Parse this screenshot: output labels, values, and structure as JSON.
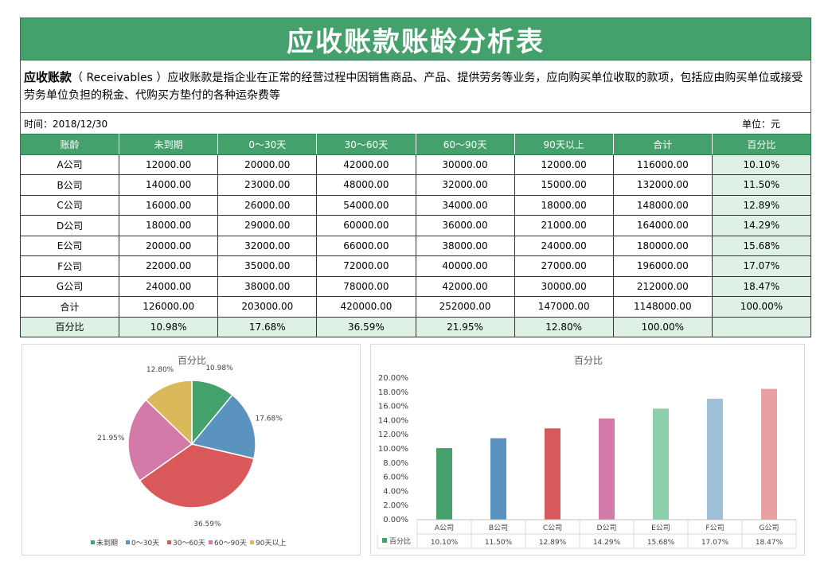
{
  "title": "应收账款账龄分析表",
  "description": {
    "term": "应收账款",
    "text": "（ Receivables ）应收账款是指企业在正常的经营过程中因销售商品、产品、提供劳务等业务，应向购买单位收取的款项，包括应由购买单位或接受劳务单位负担的税金、代购买方垫付的各种运杂费等"
  },
  "info": {
    "date": "时间：2018/12/30",
    "unit": "单位：元"
  },
  "table": {
    "headers": [
      "账龄",
      "未到期",
      "0～30天",
      "30～60天",
      "60～90天",
      "90天以上",
      "合计",
      "百分比"
    ],
    "rows": [
      [
        "A公司",
        "12000.00",
        "20000.00",
        "42000.00",
        "30000.00",
        "12000.00",
        "116000.00",
        "10.10%"
      ],
      [
        "B公司",
        "14000.00",
        "23000.00",
        "48000.00",
        "32000.00",
        "15000.00",
        "132000.00",
        "11.50%"
      ],
      [
        "C公司",
        "16000.00",
        "26000.00",
        "54000.00",
        "34000.00",
        "18000.00",
        "148000.00",
        "12.89%"
      ],
      [
        "D公司",
        "18000.00",
        "29000.00",
        "60000.00",
        "36000.00",
        "21000.00",
        "164000.00",
        "14.29%"
      ],
      [
        "E公司",
        "20000.00",
        "32000.00",
        "66000.00",
        "38000.00",
        "24000.00",
        "180000.00",
        "15.68%"
      ],
      [
        "F公司",
        "22000.00",
        "35000.00",
        "72000.00",
        "40000.00",
        "27000.00",
        "196000.00",
        "17.07%"
      ],
      [
        "G公司",
        "24000.00",
        "38000.00",
        "78000.00",
        "42000.00",
        "30000.00",
        "212000.00",
        "18.47%"
      ]
    ],
    "total_row": [
      "合计",
      "126000.00",
      "203000.00",
      "420000.00",
      "252000.00",
      "147000.00",
      "1148000.00",
      "100.00%"
    ],
    "pct_row": [
      "百分比",
      "10.98%",
      "17.68%",
      "36.59%",
      "21.95%",
      "12.80%",
      "100.00%",
      ""
    ]
  },
  "chart_data": [
    {
      "type": "pie",
      "title": "百分比",
      "categories": [
        "未到期",
        "0～30天",
        "30～60天",
        "60～90天",
        "90天以上"
      ],
      "values": [
        10.98,
        17.68,
        36.59,
        21.95,
        12.8
      ],
      "labels": [
        "10.98%",
        "17.68%",
        "36.59%",
        "21.95%",
        "12.80%"
      ],
      "colors": [
        "#45a16c",
        "#5b93bf",
        "#d9585a",
        "#d47aa8",
        "#d9b95a"
      ],
      "legend": "bottom"
    },
    {
      "type": "bar",
      "title": "百分比",
      "categories": [
        "A公司",
        "B公司",
        "C公司",
        "D公司",
        "E公司",
        "F公司",
        "G公司"
      ],
      "values": [
        10.1,
        11.5,
        12.89,
        14.29,
        15.68,
        17.07,
        18.47
      ],
      "value_labels": [
        "10.10%",
        "11.50%",
        "12.89%",
        "14.29%",
        "15.68%",
        "17.07%",
        "18.47%"
      ],
      "colors": [
        "#45a16c",
        "#5b93bf",
        "#d9585a",
        "#d47aa8",
        "#8ccfaa",
        "#9ec0d9",
        "#e8a0a0"
      ],
      "ylim": [
        0,
        20
      ],
      "yticks": [
        "0.00%",
        "2.00%",
        "4.00%",
        "6.00%",
        "8.00%",
        "10.00%",
        "12.00%",
        "14.00%",
        "16.00%",
        "18.00%",
        "20.00%"
      ],
      "data_table_series": "百分比",
      "grid": false
    }
  ]
}
